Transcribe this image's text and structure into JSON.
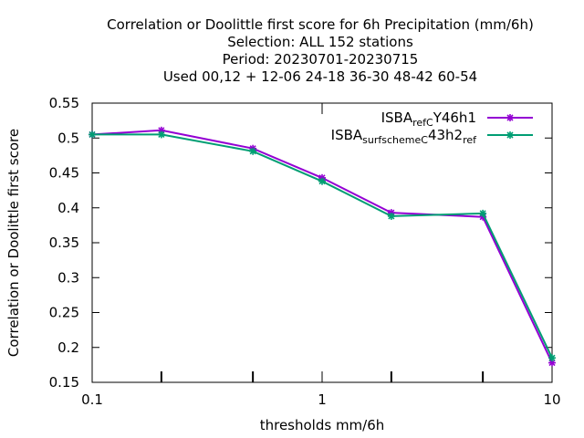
{
  "chart_data": {
    "type": "line",
    "title_lines": [
      "Correlation or Doolittle first score  for 6h Precipitation (mm/6h)",
      "Selection: ALL    152 stations",
      "Period: 20230701-20230715",
      "Used  00,12  + 12-06 24-18 36-30 48-42 60-54"
    ],
    "xlabel": "thresholds mm/6h",
    "ylabel": "Correlation or Doolittle first score",
    "x_scale": "log",
    "xlim": [
      0.1,
      10
    ],
    "ylim": [
      0.15,
      0.55
    ],
    "x_ticks": [
      {
        "value": 0.1,
        "label": "0.1"
      },
      {
        "value": 1,
        "label": "1"
      },
      {
        "value": 10,
        "label": "10"
      }
    ],
    "x_minor_ticks": [
      0.2,
      0.5,
      2,
      5
    ],
    "y_ticks": [
      {
        "value": 0.15,
        "label": "0.15"
      },
      {
        "value": 0.2,
        "label": "0.2"
      },
      {
        "value": 0.25,
        "label": "0.25"
      },
      {
        "value": 0.3,
        "label": "0.3"
      },
      {
        "value": 0.35,
        "label": "0.35"
      },
      {
        "value": 0.4,
        "label": "0.4"
      },
      {
        "value": 0.45,
        "label": "0.45"
      },
      {
        "value": 0.5,
        "label": "0.5"
      },
      {
        "value": 0.55,
        "label": "0.55"
      }
    ],
    "grid": false,
    "legend_position": "top-right",
    "series": [
      {
        "name_parts": [
          [
            "ISBA",
            0
          ],
          [
            "ref",
            -1
          ],
          [
            "C",
            -1
          ],
          [
            "Y46h1",
            0
          ]
        ],
        "color": "#9400d3",
        "x": [
          0.1,
          0.2,
          0.5,
          1,
          2,
          5,
          10
        ],
        "y": [
          0.505,
          0.511,
          0.485,
          0.443,
          0.393,
          0.387,
          0.178
        ]
      },
      {
        "name_parts": [
          [
            "ISBA",
            0
          ],
          [
            "surfscheme",
            -1
          ],
          [
            "C",
            -1
          ],
          [
            "43h2",
            0
          ],
          [
            "ref",
            -1
          ]
        ],
        "color": "#009e73",
        "x": [
          0.1,
          0.2,
          0.5,
          1,
          2,
          5,
          10
        ],
        "y": [
          0.505,
          0.505,
          0.481,
          0.438,
          0.388,
          0.392,
          0.185
        ]
      }
    ]
  }
}
